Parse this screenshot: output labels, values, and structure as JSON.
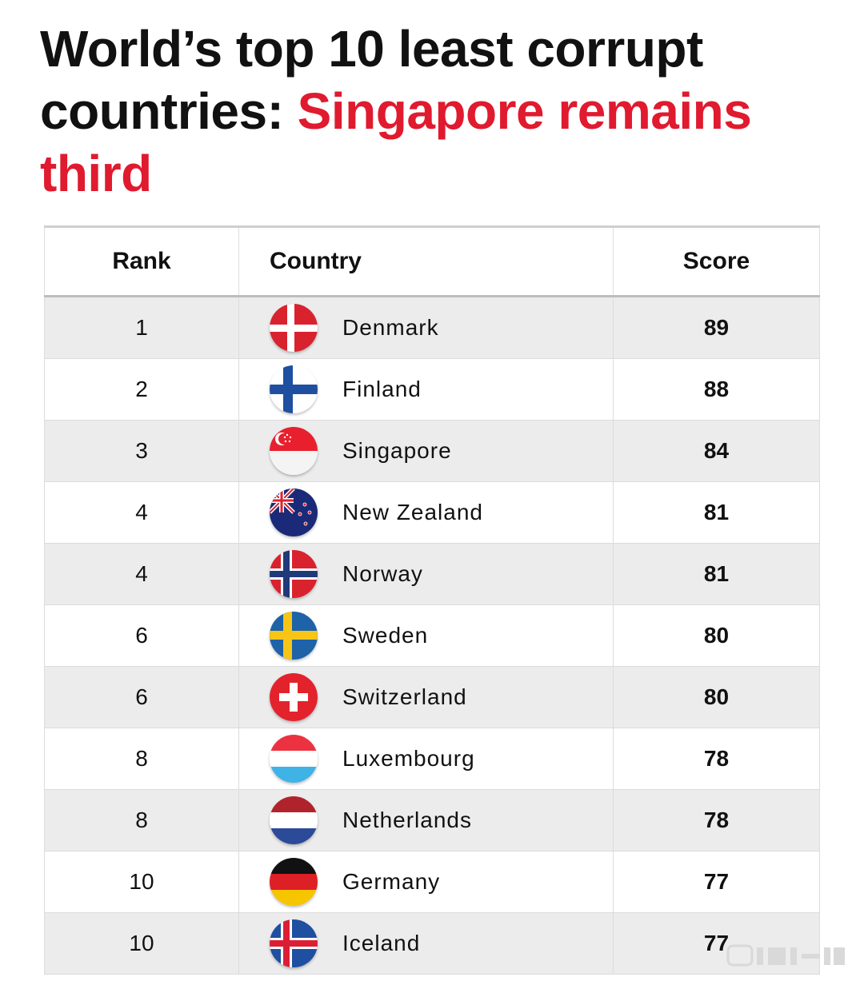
{
  "headline": {
    "part1": "World’s top 10 least corrupt countries:",
    "part2": "Singapore remains third"
  },
  "colors": {
    "accent": "#e01a2f",
    "row_alt": "#ececec"
  },
  "table": {
    "headers": {
      "rank": "Rank",
      "country": "Country",
      "score": "Score"
    },
    "rows": [
      {
        "rank": "1",
        "country": "Denmark",
        "score": "89",
        "flag": "denmark-flag-icon"
      },
      {
        "rank": "2",
        "country": "Finland",
        "score": "88",
        "flag": "finland-flag-icon"
      },
      {
        "rank": "3",
        "country": "Singapore",
        "score": "84",
        "flag": "singapore-flag-icon"
      },
      {
        "rank": "4",
        "country": "New Zealand",
        "score": "81",
        "flag": "new-zealand-flag-icon"
      },
      {
        "rank": "4",
        "country": "Norway",
        "score": "81",
        "flag": "norway-flag-icon"
      },
      {
        "rank": "6",
        "country": "Sweden",
        "score": "80",
        "flag": "sweden-flag-icon"
      },
      {
        "rank": "6",
        "country": "Switzerland",
        "score": "80",
        "flag": "switzerland-flag-icon"
      },
      {
        "rank": "8",
        "country": "Luxembourg",
        "score": "78",
        "flag": "luxembourg-flag-icon"
      },
      {
        "rank": "8",
        "country": "Netherlands",
        "score": "78",
        "flag": "netherlands-flag-icon"
      },
      {
        "rank": "10",
        "country": "Germany",
        "score": "77",
        "flag": "germany-flag-icon"
      },
      {
        "rank": "10",
        "country": "Iceland",
        "score": "77",
        "flag": "iceland-flag-icon"
      }
    ]
  }
}
